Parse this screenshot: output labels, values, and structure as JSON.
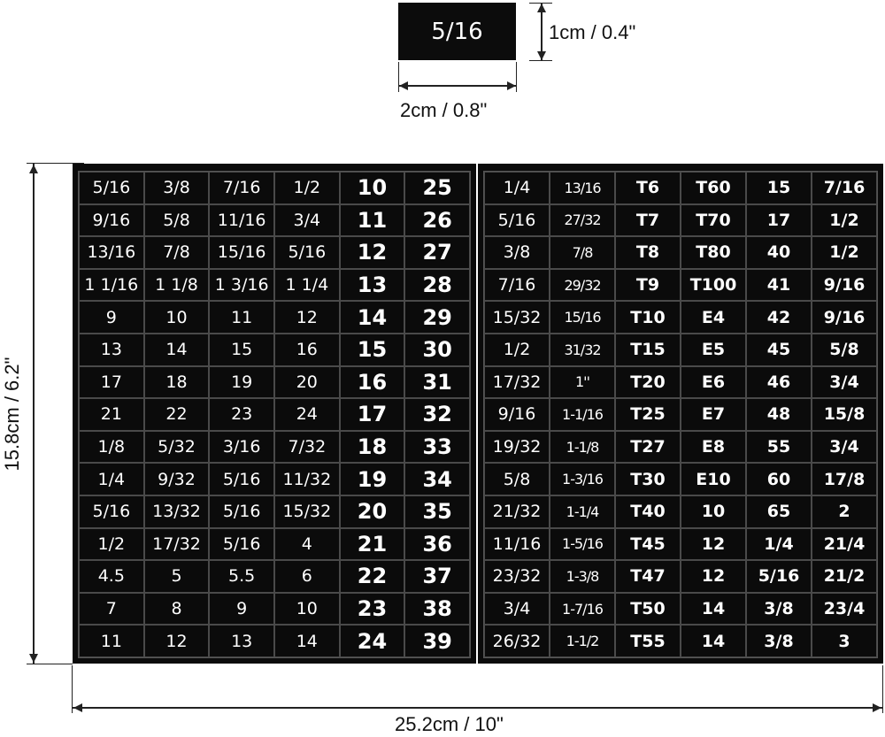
{
  "sample_label": {
    "text": "5/16",
    "height_label": "1cm / 0.4\"",
    "width_label": "2cm / 0.8\""
  },
  "sheet_dimensions": {
    "height_label": "15.8cm / 6.2\"",
    "width_label": "25.2cm / 10\""
  },
  "colors": {
    "sticker_background": "#0b0b0b",
    "sticker_text": "#ffffff"
  },
  "left_sheet": {
    "rows": [
      [
        "5/16",
        "3/8",
        "7/16",
        "1/2",
        "10",
        "25"
      ],
      [
        "9/16",
        "5/8",
        "11/16",
        "3/4",
        "11",
        "26"
      ],
      [
        "13/16",
        "7/8",
        "15/16",
        "5/16",
        "12",
        "27"
      ],
      [
        "1 1/16",
        "1 1/8",
        "1 3/16",
        "1 1/4",
        "13",
        "28"
      ],
      [
        "9",
        "10",
        "11",
        "12",
        "14",
        "29"
      ],
      [
        "13",
        "14",
        "15",
        "16",
        "15",
        "30"
      ],
      [
        "17",
        "18",
        "19",
        "20",
        "16",
        "31"
      ],
      [
        "21",
        "22",
        "23",
        "24",
        "17",
        "32"
      ],
      [
        "1/8",
        "5/32",
        "3/16",
        "7/32",
        "18",
        "33"
      ],
      [
        "1/4",
        "9/32",
        "5/16",
        "11/32",
        "19",
        "34"
      ],
      [
        "5/16",
        "13/32",
        "5/16",
        "15/32",
        "20",
        "35"
      ],
      [
        "1/2",
        "17/32",
        "5/16",
        "4",
        "21",
        "36"
      ],
      [
        "4.5",
        "5",
        "5.5",
        "6",
        "22",
        "37"
      ],
      [
        "7",
        "8",
        "9",
        "10",
        "23",
        "38"
      ],
      [
        "11",
        "12",
        "13",
        "14",
        "24",
        "39"
      ]
    ]
  },
  "right_sheet": {
    "rows": [
      [
        "1/4",
        "13/16",
        "T6",
        "T60",
        "15",
        "7/16"
      ],
      [
        "5/16",
        "27/32",
        "T7",
        "T70",
        "17",
        "1/2"
      ],
      [
        "3/8",
        "7/8",
        "T8",
        "T80",
        "40",
        "1/2"
      ],
      [
        "7/16",
        "29/32",
        "T9",
        "T100",
        "41",
        "9/16"
      ],
      [
        "15/32",
        "15/16",
        "T10",
        "E4",
        "42",
        "9/16"
      ],
      [
        "1/2",
        "31/32",
        "T15",
        "E5",
        "45",
        "5/8"
      ],
      [
        "17/32",
        "1''",
        "T20",
        "E6",
        "46",
        "3/4"
      ],
      [
        "9/16",
        "1-1/16",
        "T25",
        "E7",
        "48",
        "15/8"
      ],
      [
        "19/32",
        "1-1/8",
        "T27",
        "E8",
        "55",
        "3/4"
      ],
      [
        "5/8",
        "1-3/16",
        "T30",
        "E10",
        "60",
        "17/8"
      ],
      [
        "21/32",
        "1-1/4",
        "T40",
        "10",
        "65",
        "2"
      ],
      [
        "11/16",
        "1-5/16",
        "T45",
        "12",
        "1/4",
        "21/4"
      ],
      [
        "23/32",
        "1-3/8",
        "T47",
        "12",
        "5/16",
        "21/2"
      ],
      [
        "3/4",
        "1-7/16",
        "T50",
        "14",
        "3/8",
        "23/4"
      ],
      [
        "26/32",
        "1-1/2",
        "T55",
        "14",
        "3/8",
        "3"
      ]
    ]
  }
}
